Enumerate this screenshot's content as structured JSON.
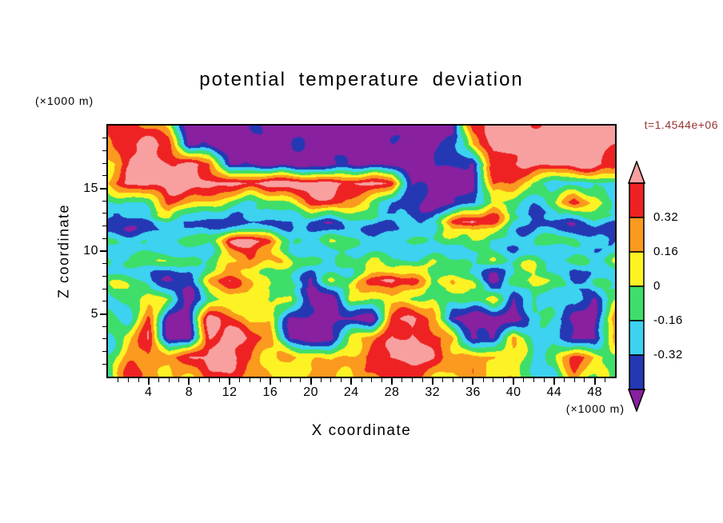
{
  "title": "potential temperature deviation",
  "time_label": "t=1.4544e+06",
  "axes": {
    "x_label": "X coordinate",
    "x_units": "(×1000 m)",
    "y_label": "Z coordinate",
    "y_units": "(×1000 m)",
    "x_ticks": [
      4,
      8,
      12,
      16,
      20,
      24,
      28,
      32,
      36,
      40,
      44,
      48
    ],
    "y_ticks": [
      5,
      10,
      15
    ]
  },
  "colorbar": {
    "labels": [
      "0.32",
      "0.16",
      "0",
      "-0.16",
      "-0.32"
    ]
  },
  "colors": {
    "background": "#ffffff",
    "frame": "#000000",
    "time_label": "#993333"
  },
  "chart_data": {
    "type": "heatmap",
    "style": "filled-contour",
    "title": "potential temperature deviation",
    "xlabel": "X coordinate (×1000 m)",
    "ylabel": "Z coordinate (×1000 m)",
    "time": "t=1.4544e+06",
    "x_range": [
      0,
      50
    ],
    "z_range": [
      0,
      20
    ],
    "levels": [
      -0.48,
      -0.32,
      -0.16,
      0,
      0.16,
      0.32,
      0.48
    ],
    "labeled_levels": [
      0.32,
      0.16,
      0,
      -0.16,
      -0.32
    ],
    "palette": [
      "#8820a0",
      "#2438b4",
      "#3cd2f0",
      "#3ede6a",
      "#fdf324",
      "#fb9a1e",
      "#ee2222",
      "#f8a0a0"
    ],
    "palette_names": [
      "purple (< -0.48)",
      "navy (-0.48..-0.32)",
      "cyan (-0.32..-0.16)",
      "green (-0.16..0)",
      "yellow (0..0.16)",
      "orange (0.16..0.32)",
      "red (0.32..0.48)",
      "pink (> 0.48)"
    ],
    "values_order": "rows top to bottom (z=20 down to z=0), columns left to right (x=0 to x=50), coarse estimate of field",
    "values": [
      [
        0.4,
        0.4,
        0.24,
        0.08,
        -0.56,
        -0.56,
        -0.56,
        -0.56,
        -0.56,
        -0.56,
        -0.56,
        -0.56,
        -0.56,
        -0.56,
        -0.56,
        -0.56,
        -0.56,
        -0.56,
        0.4,
        0.56,
        0.56,
        0.56,
        0.56,
        0.56,
        0.56,
        0.56
      ],
      [
        0.24,
        0.56,
        0.56,
        0.4,
        -0.56,
        -0.56,
        -0.56,
        -0.56,
        -0.56,
        -0.56,
        -0.56,
        -0.56,
        -0.56,
        -0.56,
        -0.56,
        -0.56,
        -0.56,
        -0.4,
        0.24,
        0.56,
        0.56,
        0.56,
        0.56,
        0.56,
        0.56,
        0.56
      ],
      [
        0.08,
        0.4,
        0.56,
        0.56,
        0.56,
        0.4,
        -0.56,
        -0.56,
        -0.56,
        -0.56,
        -0.56,
        -0.56,
        -0.56,
        -0.56,
        -0.56,
        -0.56,
        -0.56,
        -0.4,
        -0.56,
        0.4,
        0.56,
        0.56,
        0.56,
        0.56,
        0.56,
        0.4
      ],
      [
        0.24,
        0.56,
        0.56,
        0.56,
        0.56,
        0.56,
        0.56,
        0.56,
        0.56,
        0.56,
        0.56,
        0.56,
        0.56,
        0.56,
        0.4,
        -0.56,
        -0.56,
        -0.56,
        -0.56,
        0.4,
        0.24,
        -0.08,
        -0.24,
        -0.24,
        -0.08,
        -0.24
      ],
      [
        -0.24,
        -0.24,
        -0.08,
        0.4,
        0.24,
        0.08,
        -0.08,
        -0.24,
        -0.08,
        0.08,
        0.4,
        0.4,
        0.24,
        -0.08,
        -0.24,
        -0.4,
        -0.56,
        -0.56,
        -0.4,
        0.08,
        -0.08,
        -0.24,
        -0.08,
        0.4,
        0.08,
        -0.24
      ],
      [
        -0.4,
        -0.4,
        -0.4,
        -0.24,
        -0.4,
        -0.4,
        -0.4,
        -0.4,
        -0.4,
        -0.4,
        -0.4,
        -0.4,
        -0.24,
        -0.24,
        -0.4,
        -0.4,
        -0.24,
        0.4,
        0.56,
        0.4,
        -0.24,
        -0.4,
        -0.4,
        -0.4,
        -0.24,
        -0.4
      ],
      [
        -0.24,
        -0.24,
        -0.24,
        -0.24,
        -0.08,
        -0.24,
        0.4,
        0.56,
        0.4,
        -0.24,
        -0.24,
        -0.08,
        -0.24,
        -0.24,
        -0.24,
        -0.08,
        -0.24,
        -0.24,
        -0.08,
        -0.24,
        -0.24,
        -0.24,
        -0.08,
        -0.24,
        -0.4,
        -0.24
      ],
      [
        -0.08,
        -0.24,
        -0.08,
        -0.08,
        -0.24,
        -0.08,
        0.08,
        0.24,
        0.08,
        -0.08,
        -0.08,
        -0.24,
        -0.08,
        -0.08,
        -0.24,
        -0.24,
        -0.08,
        -0.08,
        -0.24,
        -0.08,
        -0.24,
        -0.08,
        -0.24,
        -0.08,
        -0.24,
        -0.08
      ],
      [
        -0.08,
        -0.08,
        -0.24,
        -0.56,
        -0.4,
        0.08,
        0.4,
        0.24,
        -0.08,
        -0.08,
        -0.56,
        -0.08,
        -0.08,
        0.4,
        0.56,
        0.4,
        -0.08,
        0.08,
        -0.08,
        -0.56,
        -0.08,
        0.08,
        -0.08,
        -0.56,
        -0.08,
        -0.24
      ],
      [
        -0.24,
        -0.08,
        0.08,
        -0.08,
        -0.56,
        -0.08,
        0.08,
        0.08,
        -0.08,
        0.08,
        -0.56,
        -0.56,
        0.08,
        -0.08,
        0.08,
        -0.08,
        0.08,
        -0.08,
        -0.08,
        0.08,
        -0.56,
        -0.08,
        -0.24,
        -0.08,
        -0.56,
        -0.08
      ],
      [
        -0.08,
        -0.24,
        0.4,
        -0.56,
        -0.56,
        0.56,
        0.4,
        0.08,
        0.24,
        -0.56,
        -0.56,
        -0.56,
        -0.56,
        -0.56,
        0.4,
        0.56,
        0.24,
        -0.56,
        -0.56,
        -0.56,
        -0.56,
        -0.24,
        -0.24,
        -0.56,
        -0.56,
        0.4
      ],
      [
        -0.24,
        0.08,
        0.4,
        -0.56,
        -0.56,
        0.56,
        0.56,
        0.4,
        0.24,
        -0.56,
        -0.56,
        -0.56,
        0.08,
        0.24,
        0.4,
        0.56,
        0.4,
        0.24,
        -0.56,
        -0.56,
        0.24,
        -0.24,
        -0.08,
        -0.56,
        -0.56,
        0.24
      ],
      [
        -0.08,
        0.24,
        0.4,
        0.24,
        0.4,
        0.56,
        0.56,
        0.4,
        0.08,
        0.24,
        0.08,
        0.08,
        0.24,
        0.4,
        0.56,
        0.56,
        0.4,
        0.24,
        0.24,
        0.24,
        0.08,
        -0.24,
        -0.08,
        0.4,
        0.24,
        -0.08
      ],
      [
        -0.24,
        0.4,
        0.24,
        0.08,
        0.24,
        0.4,
        0.4,
        0.24,
        0.08,
        0.08,
        0.24,
        0.24,
        0.08,
        0.24,
        0.4,
        0.4,
        0.24,
        0.08,
        0.24,
        0.08,
        0.08,
        -0.08,
        -0.24,
        0.24,
        -0.08,
        -0.08
      ]
    ]
  }
}
